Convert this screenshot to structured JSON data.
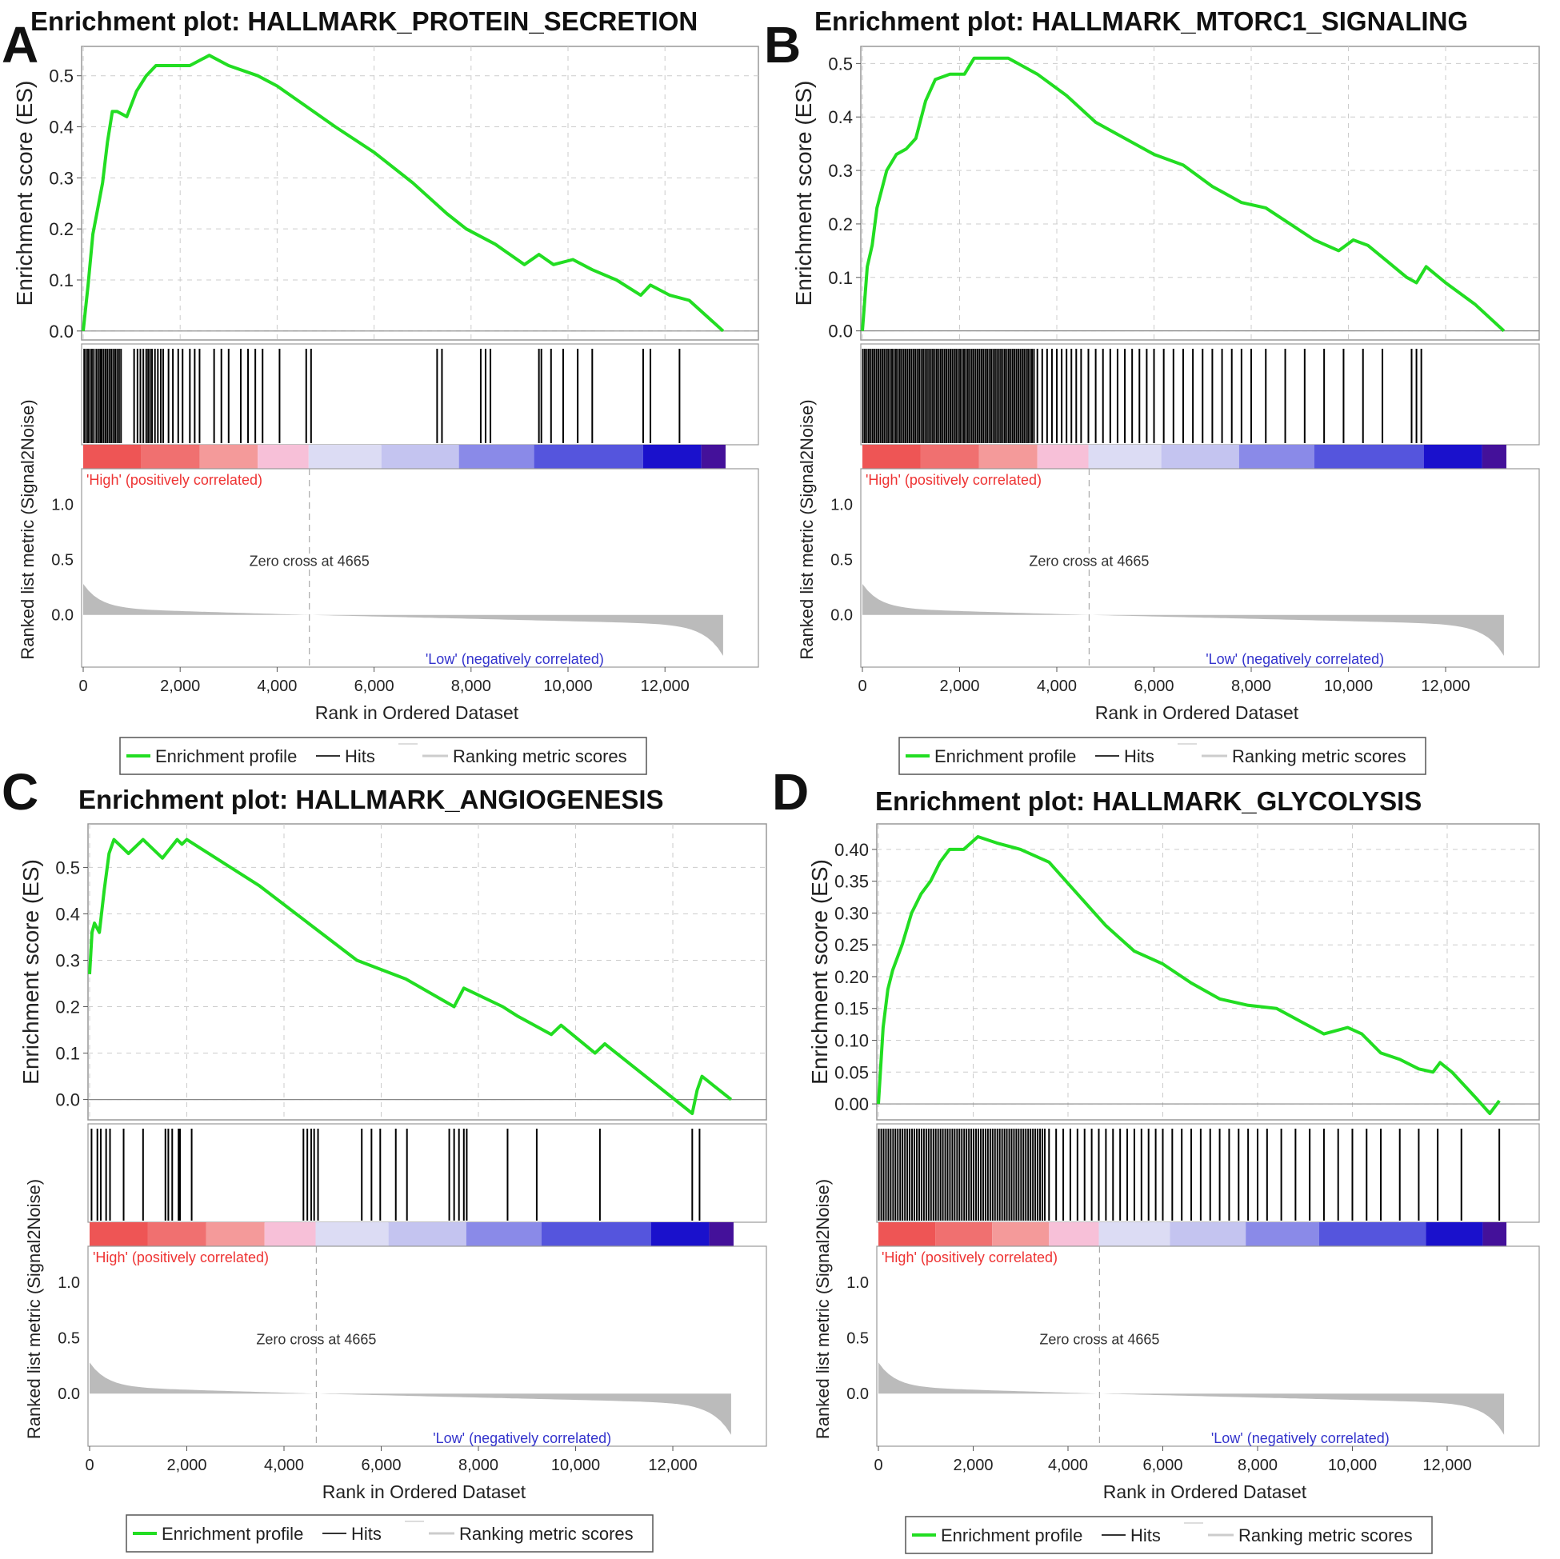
{
  "common": {
    "es_ylabel": "Enrichment score (ES)",
    "metric_ylabel": "Ranked list metric (Signal2Noise)",
    "xlabel": "Rank in Ordered Dataset",
    "x_ticks": [
      0,
      2000,
      4000,
      6000,
      8000,
      10000,
      12000
    ],
    "x_tick_labels": [
      "0",
      "2,000",
      "4,000",
      "6,000",
      "8,000",
      "10,000",
      "12,000"
    ],
    "xlim": [
      0,
      13300
    ],
    "n_genes": 13200,
    "high_label": "'High' (positively correlated)",
    "low_label": "'Low' (negatively correlated)",
    "zero_cross_label": "Zero cross at 4665",
    "zero_cross": 4665,
    "metric_ticks": [
      1.0,
      0.5,
      0.0
    ],
    "metric_tick_labels": [
      "1.0",
      "0.5",
      "0.0"
    ],
    "metric_ylim": [
      -0.4,
      1.25
    ],
    "legend": [
      "Enrichment profile",
      "Hits",
      "Ranking metric scores"
    ],
    "colors": {
      "profile": "#22dd22",
      "hits": "#000000",
      "metric_fill": "#bbbbbb",
      "high_text": "#ee3333",
      "low_text": "#3333cc",
      "frame": "#999999",
      "grid": "#cccccc"
    }
  },
  "chart_data": [
    {
      "type": "line",
      "panel": "A",
      "title": "Enrichment plot: HALLMARK_PROTEIN_SECRETION",
      "ylabel": "Enrichment score (ES)",
      "xlabel": "Rank in Ordered Dataset",
      "ylim": [
        -0.005,
        0.545
      ],
      "y_ticks": [
        0.0,
        0.1,
        0.2,
        0.3,
        0.4,
        0.5
      ],
      "y_tick_labels": [
        "0.0",
        "0.1",
        "0.2",
        "0.3",
        "0.4",
        "0.5"
      ],
      "x": [
        0,
        100,
        200,
        300,
        400,
        500,
        600,
        700,
        900,
        1100,
        1300,
        1500,
        1800,
        2200,
        2600,
        3000,
        3600,
        4000,
        4600,
        5200,
        6000,
        6800,
        7500,
        7900,
        8500,
        9100,
        9400,
        9700,
        10100,
        10500,
        11000,
        11500,
        11700,
        12100,
        12500,
        13200
      ],
      "y": [
        0.0,
        0.09,
        0.19,
        0.24,
        0.29,
        0.37,
        0.43,
        0.43,
        0.42,
        0.47,
        0.5,
        0.52,
        0.52,
        0.52,
        0.54,
        0.52,
        0.5,
        0.48,
        0.44,
        0.4,
        0.35,
        0.29,
        0.23,
        0.2,
        0.17,
        0.13,
        0.15,
        0.13,
        0.14,
        0.12,
        0.1,
        0.07,
        0.09,
        0.07,
        0.06,
        0.0
      ],
      "hits": [
        20,
        60,
        100,
        140,
        180,
        220,
        270,
        310,
        350,
        380,
        420,
        460,
        500,
        540,
        580,
        620,
        660,
        700,
        740,
        780,
        1050,
        1120,
        1180,
        1240,
        1300,
        1340,
        1380,
        1420,
        1480,
        1540,
        1600,
        1650,
        1760,
        1850,
        1960,
        2050,
        2200,
        2300,
        2400,
        2700,
        2850,
        3000,
        3250,
        3400,
        3550,
        3700,
        4050,
        4600,
        4700,
        7300,
        7400,
        8200,
        8300,
        8400,
        9400,
        9450,
        9650,
        9900,
        10200,
        10500,
        11550,
        11700,
        12300
      ],
      "color_bands": [
        {
          "start": 0,
          "end": 1200,
          "color": "#ee5555"
        },
        {
          "start": 1200,
          "end": 2400,
          "color": "#f07070"
        },
        {
          "start": 2400,
          "end": 3600,
          "color": "#f49a9a"
        },
        {
          "start": 3600,
          "end": 4650,
          "color": "#f7c0d8"
        },
        {
          "start": 4650,
          "end": 6150,
          "color": "#dcdcf4"
        },
        {
          "start": 6150,
          "end": 7750,
          "color": "#c4c4f0"
        },
        {
          "start": 7750,
          "end": 9300,
          "color": "#8a8ae8"
        },
        {
          "start": 9300,
          "end": 11550,
          "color": "#5555dd"
        },
        {
          "start": 11550,
          "end": 12750,
          "color": "#1a11cc"
        },
        {
          "start": 12750,
          "end": 13250,
          "color": "#44119a"
        }
      ]
    },
    {
      "type": "line",
      "panel": "B",
      "title": "Enrichment plot: HALLMARK_MTORC1_SIGNALING",
      "ylabel": "Enrichment score (ES)",
      "xlabel": "Rank in Ordered Dataset",
      "ylim": [
        -0.005,
        0.52
      ],
      "y_ticks": [
        0.0,
        0.1,
        0.2,
        0.3,
        0.4,
        0.5
      ],
      "y_tick_labels": [
        "0.0",
        "0.1",
        "0.2",
        "0.3",
        "0.4",
        "0.5"
      ],
      "x": [
        0,
        100,
        200,
        300,
        500,
        700,
        900,
        1100,
        1300,
        1500,
        1800,
        2100,
        2300,
        2600,
        3000,
        3600,
        4200,
        4800,
        5400,
        6000,
        6600,
        7200,
        7800,
        8300,
        8800,
        9300,
        9800,
        10100,
        10400,
        10800,
        11200,
        11400,
        11600,
        12000,
        12600,
        13200
      ],
      "y": [
        0.0,
        0.12,
        0.16,
        0.23,
        0.3,
        0.33,
        0.34,
        0.36,
        0.43,
        0.47,
        0.48,
        0.48,
        0.51,
        0.51,
        0.51,
        0.48,
        0.44,
        0.39,
        0.36,
        0.33,
        0.31,
        0.27,
        0.24,
        0.23,
        0.2,
        0.17,
        0.15,
        0.17,
        0.16,
        0.13,
        0.1,
        0.09,
        0.12,
        0.09,
        0.05,
        0.0
      ],
      "hits": [
        10,
        50,
        90,
        130,
        170,
        210,
        250,
        290,
        330,
        370,
        410,
        450,
        490,
        530,
        570,
        610,
        650,
        690,
        730,
        770,
        810,
        850,
        890,
        930,
        970,
        1010,
        1050,
        1090,
        1130,
        1170,
        1210,
        1250,
        1290,
        1330,
        1370,
        1410,
        1450,
        1490,
        1530,
        1570,
        1610,
        1650,
        1690,
        1730,
        1770,
        1810,
        1850,
        1890,
        1930,
        1970,
        2010,
        2050,
        2090,
        2130,
        2170,
        2210,
        2250,
        2290,
        2330,
        2370,
        2410,
        2450,
        2490,
        2530,
        2570,
        2610,
        2650,
        2690,
        2730,
        2770,
        2810,
        2850,
        2890,
        2930,
        2970,
        3010,
        3050,
        3090,
        3130,
        3170,
        3210,
        3250,
        3290,
        3330,
        3370,
        3410,
        3450,
        3490,
        3530,
        3600,
        3700,
        3800,
        3900,
        4000,
        4100,
        4200,
        4300,
        4400,
        4500,
        4650,
        4800,
        4950,
        5100,
        5250,
        5400,
        5550,
        5700,
        5850,
        6000,
        6200,
        6400,
        6600,
        6800,
        7000,
        7200,
        7400,
        7600,
        7800,
        8000,
        8300,
        8700,
        9100,
        9500,
        9900,
        10300,
        10700,
        11300,
        11400,
        11500
      ],
      "color_bands": [
        {
          "start": 0,
          "end": 1200,
          "color": "#ee5555"
        },
        {
          "start": 1200,
          "end": 2400,
          "color": "#f07070"
        },
        {
          "start": 2400,
          "end": 3600,
          "color": "#f49a9a"
        },
        {
          "start": 3600,
          "end": 4650,
          "color": "#f7c0d8"
        },
        {
          "start": 4650,
          "end": 6150,
          "color": "#dcdcf4"
        },
        {
          "start": 6150,
          "end": 7750,
          "color": "#c4c4f0"
        },
        {
          "start": 7750,
          "end": 9300,
          "color": "#8a8ae8"
        },
        {
          "start": 9300,
          "end": 11550,
          "color": "#5555dd"
        },
        {
          "start": 11550,
          "end": 12750,
          "color": "#1a11cc"
        },
        {
          "start": 12750,
          "end": 13250,
          "color": "#44119a"
        }
      ]
    },
    {
      "type": "line",
      "panel": "C",
      "title": "Enrichment plot: HALLMARK_ANGIOGENESIS",
      "ylabel": "Enrichment score (ES)",
      "xlabel": "Rank in Ordered Dataset",
      "ylim": [
        -0.03,
        0.58
      ],
      "y_ticks": [
        0.0,
        0.1,
        0.2,
        0.3,
        0.4,
        0.5
      ],
      "y_tick_labels": [
        "0.0",
        "0.1",
        "0.2",
        "0.3",
        "0.4",
        "0.5"
      ],
      "x": [
        0,
        50,
        100,
        200,
        300,
        400,
        500,
        800,
        1100,
        1500,
        1800,
        1900,
        2000,
        2300,
        3500,
        4500,
        5500,
        6500,
        7500,
        7700,
        8500,
        8800,
        9500,
        9700,
        10400,
        10600,
        12400,
        12500,
        12600,
        13200
      ],
      "y": [
        0.27,
        0.36,
        0.38,
        0.36,
        0.45,
        0.53,
        0.56,
        0.53,
        0.56,
        0.52,
        0.56,
        0.55,
        0.56,
        0.54,
        0.46,
        0.38,
        0.3,
        0.26,
        0.2,
        0.24,
        0.2,
        0.18,
        0.14,
        0.16,
        0.1,
        0.12,
        -0.03,
        0.02,
        0.05,
        0.0
      ],
      "hits": [
        40,
        160,
        230,
        340,
        420,
        700,
        1100,
        1560,
        1620,
        1700,
        1830,
        1860,
        2100,
        4400,
        4480,
        4560,
        4620,
        4700,
        5600,
        5800,
        5980,
        6300,
        6530,
        7400,
        7500,
        7600,
        7700,
        7760,
        8600,
        9200,
        10500,
        12400,
        12550
      ],
      "color_bands": [
        {
          "start": 0,
          "end": 1200,
          "color": "#ee5555"
        },
        {
          "start": 1200,
          "end": 2400,
          "color": "#f07070"
        },
        {
          "start": 2400,
          "end": 3600,
          "color": "#f49a9a"
        },
        {
          "start": 3600,
          "end": 4650,
          "color": "#f7c0d8"
        },
        {
          "start": 4650,
          "end": 6150,
          "color": "#dcdcf4"
        },
        {
          "start": 6150,
          "end": 7750,
          "color": "#c4c4f0"
        },
        {
          "start": 7750,
          "end": 9300,
          "color": "#8a8ae8"
        },
        {
          "start": 9300,
          "end": 11550,
          "color": "#5555dd"
        },
        {
          "start": 11550,
          "end": 12750,
          "color": "#1a11cc"
        },
        {
          "start": 12750,
          "end": 13250,
          "color": "#44119a"
        }
      ]
    },
    {
      "type": "line",
      "panel": "D",
      "title": "Enrichment plot: HALLMARK_GLYCOLYSIS",
      "ylabel": "Enrichment score (ES)",
      "xlabel": "Rank in Ordered Dataset",
      "ylim": [
        -0.015,
        0.43
      ],
      "y_ticks": [
        0.0,
        0.05,
        0.1,
        0.15,
        0.2,
        0.25,
        0.3,
        0.35,
        0.4
      ],
      "y_tick_labels": [
        "0.00",
        "0.05",
        "0.10",
        "0.15",
        "0.20",
        "0.25",
        "0.30",
        "0.35",
        "0.40"
      ],
      "x": [
        0,
        100,
        200,
        300,
        500,
        700,
        900,
        1100,
        1300,
        1500,
        1800,
        2100,
        2500,
        3000,
        3600,
        4200,
        4800,
        5400,
        6000,
        6600,
        7200,
        7800,
        8400,
        8900,
        9400,
        9900,
        10200,
        10600,
        11000,
        11400,
        11700,
        11850,
        12100,
        12600,
        12900,
        13100
      ],
      "y": [
        0.0,
        0.12,
        0.18,
        0.21,
        0.25,
        0.3,
        0.33,
        0.35,
        0.38,
        0.4,
        0.4,
        0.42,
        0.41,
        0.4,
        0.38,
        0.33,
        0.28,
        0.24,
        0.22,
        0.19,
        0.165,
        0.155,
        0.15,
        0.13,
        0.11,
        0.12,
        0.11,
        0.08,
        0.07,
        0.055,
        0.05,
        0.065,
        0.05,
        0.01,
        -0.015,
        0.005
      ],
      "hits": [
        10,
        60,
        110,
        160,
        210,
        260,
        310,
        360,
        410,
        460,
        510,
        560,
        610,
        660,
        710,
        760,
        810,
        860,
        910,
        960,
        1010,
        1060,
        1110,
        1160,
        1210,
        1260,
        1310,
        1360,
        1410,
        1460,
        1510,
        1560,
        1610,
        1660,
        1710,
        1760,
        1810,
        1860,
        1910,
        1960,
        2010,
        2060,
        2110,
        2160,
        2210,
        2260,
        2310,
        2360,
        2410,
        2460,
        2510,
        2560,
        2610,
        2660,
        2710,
        2760,
        2810,
        2860,
        2910,
        2960,
        3010,
        3060,
        3110,
        3160,
        3210,
        3260,
        3310,
        3360,
        3410,
        3460,
        3510,
        3600,
        3750,
        3900,
        4050,
        4200,
        4350,
        4500,
        4650,
        4800,
        4950,
        5100,
        5250,
        5400,
        5550,
        5700,
        5850,
        6000,
        6200,
        6400,
        6600,
        6800,
        7000,
        7200,
        7400,
        7600,
        7800,
        8000,
        8200,
        8500,
        8800,
        9100,
        9400,
        9700,
        10000,
        10300,
        10600,
        11000,
        11400,
        11800,
        12300,
        13100
      ],
      "color_bands": [
        {
          "start": 0,
          "end": 1200,
          "color": "#ee5555"
        },
        {
          "start": 1200,
          "end": 2400,
          "color": "#f07070"
        },
        {
          "start": 2400,
          "end": 3600,
          "color": "#f49a9a"
        },
        {
          "start": 3600,
          "end": 4650,
          "color": "#f7c0d8"
        },
        {
          "start": 4650,
          "end": 6150,
          "color": "#dcdcf4"
        },
        {
          "start": 6150,
          "end": 7750,
          "color": "#c4c4f0"
        },
        {
          "start": 7750,
          "end": 9300,
          "color": "#8a8ae8"
        },
        {
          "start": 9300,
          "end": 11550,
          "color": "#5555dd"
        },
        {
          "start": 11550,
          "end": 12750,
          "color": "#1a11cc"
        },
        {
          "start": 12750,
          "end": 13250,
          "color": "#44119a"
        }
      ]
    }
  ]
}
